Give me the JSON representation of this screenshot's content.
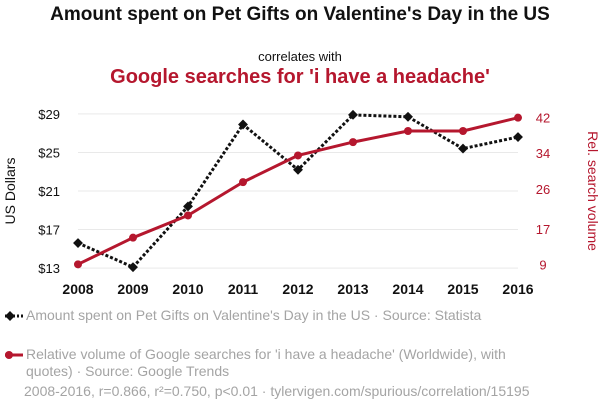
{
  "title": "Amount spent on Pet Gifts on Valentine's Day in the US",
  "subtitle": "correlates with",
  "title2": "Google searches for 'i have a headache'",
  "colors": {
    "series1": "#111111",
    "series2": "#b5172e",
    "muted": "#a4a4a4"
  },
  "legend": {
    "item1": "Amount spent on Pet Gifts on Valentine's Day in the US · Source: Statista",
    "item2": "Relative volume of Google searches for 'i have a headache' (Worldwide), with quotes) · Source: Google Trends"
  },
  "footer": "2008-2016, r=0.866, r²=0.750, p<0.01 · tylervigen.com/spurious/correlation/15195",
  "chart_data": {
    "type": "line",
    "x": [
      2008,
      2009,
      2010,
      2011,
      2012,
      2013,
      2014,
      2015,
      2016
    ],
    "xticks": [
      "2008",
      "2009",
      "2010",
      "2011",
      "2012",
      "2013",
      "2014",
      "2015",
      "2016"
    ],
    "ylabel_left": "US Dollars",
    "ylabel_right": "Rel. search volume",
    "ylim_left": [
      12.7,
      29.3
    ],
    "ylim_right": [
      7.5,
      43.5
    ],
    "yticks_left": [
      {
        "value": 13,
        "label": "$13"
      },
      {
        "value": 17,
        "label": "$17"
      },
      {
        "value": 21,
        "label": "$21"
      },
      {
        "value": 25,
        "label": "$25"
      },
      {
        "value": 29,
        "label": "$29"
      }
    ],
    "yticks_right": [
      {
        "value": 9,
        "label": "9"
      },
      {
        "value": 17,
        "label": "17"
      },
      {
        "value": 26,
        "label": "26"
      },
      {
        "value": 34,
        "label": "34"
      },
      {
        "value": 42,
        "label": "42"
      }
    ],
    "series": [
      {
        "name": "Amount spent on Pet Gifts on Valentine's Day in the US",
        "axis": "left",
        "style": "dotted",
        "marker": "diamond",
        "color": "#111111",
        "values": [
          15.6,
          13.1,
          19.4,
          27.9,
          23.2,
          28.9,
          28.7,
          25.4,
          26.6
        ]
      },
      {
        "name": "Relative volume of Google searches for 'i have a headache'",
        "axis": "right",
        "style": "solid",
        "marker": "circle",
        "color": "#b5172e",
        "values": [
          9,
          15,
          20,
          27.5,
          33.5,
          36.5,
          39,
          39,
          42
        ]
      }
    ]
  }
}
